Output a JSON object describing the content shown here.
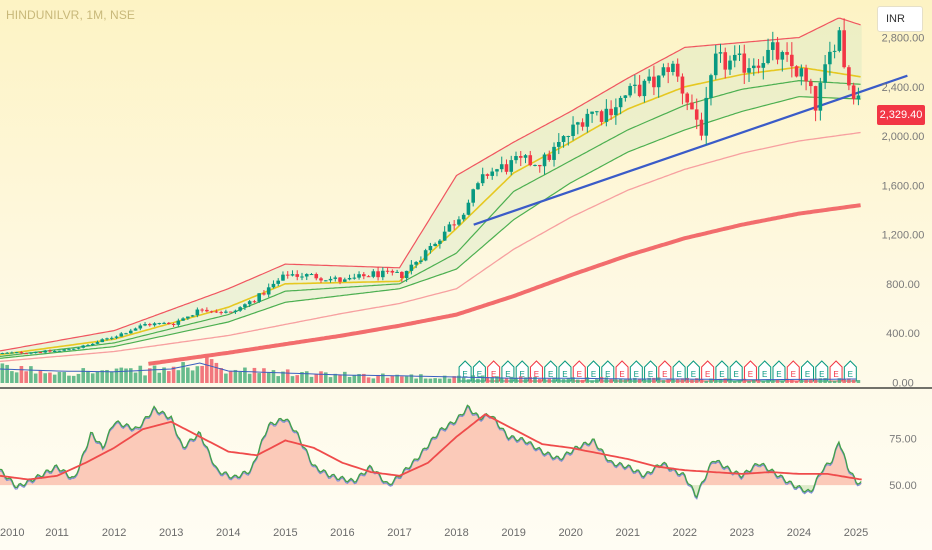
{
  "header": {
    "symbol": "HINDUNILVR, 1M, NSE",
    "currency": "INR"
  },
  "last_price": {
    "label": "2,329.40",
    "color": "#f23645"
  },
  "colors": {
    "up": "#089981",
    "down": "#f23645",
    "trendline": "#3a5bc8",
    "bb_red": "#f0555f",
    "ema_yellow": "#e6c821",
    "ema_green": "#4caf50",
    "ma_pink": "#f7a0a0",
    "ma_red_thick": "#f26d6d",
    "rsi_blue": "#7e8ed8",
    "rsi_green": "#43a047",
    "rsi_ma": "#ef4b4b",
    "rsi_fill": "#f9b9a7"
  },
  "chart_data": {
    "type": "candlestick",
    "x_axis": {
      "labels": [
        "2010",
        "2011",
        "2012",
        "2013",
        "2014",
        "2015",
        "2016",
        "2017",
        "2018",
        "2019",
        "2020",
        "2021",
        "2022",
        "2023",
        "2024",
        "2025"
      ],
      "range": [
        2010.0,
        2025.35
      ]
    },
    "price_axis": {
      "scale": "linear",
      "ylim": [
        -30,
        3040
      ],
      "ticks": [
        "0.00",
        "400.00",
        "800.00",
        "1,200.00",
        "1,600.00",
        "2,000.00",
        "2,400.00",
        "2,800.00"
      ]
    },
    "rsi_axis": {
      "ylim": [
        42,
        100
      ],
      "ticks": [
        "50.00",
        "75.00"
      ]
    },
    "grid": false,
    "close_anchors": [
      [
        2010.0,
        235
      ],
      [
        2010.5,
        245
      ],
      [
        2011.0,
        255
      ],
      [
        2011.5,
        300
      ],
      [
        2012.0,
        380
      ],
      [
        2012.5,
        470
      ],
      [
        2013.0,
        480
      ],
      [
        2013.5,
        600
      ],
      [
        2014.0,
        560
      ],
      [
        2014.5,
        700
      ],
      [
        2015.0,
        880
      ],
      [
        2015.5,
        860
      ],
      [
        2016.0,
        820
      ],
      [
        2016.5,
        880
      ],
      [
        2017.0,
        870
      ],
      [
        2017.5,
        1100
      ],
      [
        2018.0,
        1350
      ],
      [
        2018.5,
        1700
      ],
      [
        2019.0,
        1780
      ],
      [
        2019.5,
        1800
      ],
      [
        2020.0,
        2050
      ],
      [
        2020.25,
        2200
      ],
      [
        2020.5,
        2180
      ],
      [
        2021.0,
        2350
      ],
      [
        2021.5,
        2450
      ],
      [
        2021.7,
        2600
      ],
      [
        2022.0,
        2300
      ],
      [
        2022.25,
        2050
      ],
      [
        2022.5,
        2600
      ],
      [
        2023.0,
        2580
      ],
      [
        2023.5,
        2680
      ],
      [
        2024.0,
        2500
      ],
      [
        2024.25,
        2250
      ],
      [
        2024.5,
        2650
      ],
      [
        2024.65,
        2900
      ],
      [
        2024.8,
        2450
      ],
      [
        2025.0,
        2329.4
      ]
    ],
    "overlays": [
      {
        "name": "upper band",
        "anchors": [
          [
            2010.0,
            255
          ],
          [
            2012.0,
            420
          ],
          [
            2014.0,
            760
          ],
          [
            2015.0,
            960
          ],
          [
            2017.0,
            930
          ],
          [
            2018.0,
            1680
          ],
          [
            2019.0,
            1950
          ],
          [
            2020.0,
            2200
          ],
          [
            2021.0,
            2470
          ],
          [
            2022.0,
            2720
          ],
          [
            2023.0,
            2760
          ],
          [
            2024.0,
            2800
          ],
          [
            2024.7,
            2960
          ],
          [
            2025.1,
            2900
          ]
        ]
      },
      {
        "name": "ema fast",
        "anchors": [
          [
            2010.0,
            225
          ],
          [
            2012.0,
            350
          ],
          [
            2014.0,
            610
          ],
          [
            2015.0,
            800
          ],
          [
            2017.0,
            820
          ],
          [
            2018.0,
            1250
          ],
          [
            2019.0,
            1700
          ],
          [
            2020.0,
            1950
          ],
          [
            2021.0,
            2220
          ],
          [
            2022.0,
            2400
          ],
          [
            2023.0,
            2500
          ],
          [
            2024.0,
            2560
          ],
          [
            2025.1,
            2480
          ]
        ]
      },
      {
        "name": "ema mid",
        "anchors": [
          [
            2010.0,
            210
          ],
          [
            2012.0,
            320
          ],
          [
            2014.0,
            550
          ],
          [
            2015.0,
            740
          ],
          [
            2017.0,
            800
          ],
          [
            2018.0,
            1050
          ],
          [
            2019.0,
            1550
          ],
          [
            2020.0,
            1800
          ],
          [
            2021.0,
            2050
          ],
          [
            2022.0,
            2250
          ],
          [
            2023.0,
            2380
          ],
          [
            2024.0,
            2450
          ],
          [
            2025.1,
            2420
          ]
        ]
      },
      {
        "name": "ema slow",
        "anchors": [
          [
            2010.0,
            195
          ],
          [
            2012.0,
            290
          ],
          [
            2014.0,
            490
          ],
          [
            2015.0,
            650
          ],
          [
            2017.0,
            760
          ],
          [
            2018.0,
            920
          ],
          [
            2019.0,
            1320
          ],
          [
            2020.0,
            1620
          ],
          [
            2021.0,
            1870
          ],
          [
            2022.0,
            2050
          ],
          [
            2023.0,
            2200
          ],
          [
            2024.0,
            2320
          ],
          [
            2025.1,
            2300
          ]
        ]
      },
      {
        "name": "ma 100",
        "anchors": [
          [
            2010.0,
            170
          ],
          [
            2012.0,
            250
          ],
          [
            2014.0,
            380
          ],
          [
            2016.0,
            560
          ],
          [
            2017.0,
            640
          ],
          [
            2018.0,
            760
          ],
          [
            2019.0,
            1080
          ],
          [
            2020.0,
            1340
          ],
          [
            2021.0,
            1560
          ],
          [
            2022.0,
            1730
          ],
          [
            2023.0,
            1860
          ],
          [
            2024.0,
            1960
          ],
          [
            2025.1,
            2030
          ]
        ]
      },
      {
        "name": "ma 200",
        "anchors": [
          [
            2012.6,
            150
          ],
          [
            2014.0,
            240
          ],
          [
            2015.0,
            310
          ],
          [
            2016.0,
            380
          ],
          [
            2017.0,
            460
          ],
          [
            2018.0,
            550
          ],
          [
            2019.0,
            700
          ],
          [
            2020.0,
            870
          ],
          [
            2021.0,
            1030
          ],
          [
            2022.0,
            1170
          ],
          [
            2023.0,
            1280
          ],
          [
            2024.0,
            1370
          ],
          [
            2025.1,
            1440
          ]
        ]
      },
      {
        "name": "trendline",
        "anchors": [
          [
            2018.3,
            1280
          ],
          [
            2025.9,
            2490
          ]
        ]
      }
    ],
    "volume_anchors": [
      [
        2010.0,
        0.35
      ],
      [
        2011.0,
        0.3
      ],
      [
        2012.0,
        0.28
      ],
      [
        2013.0,
        0.35
      ],
      [
        2013.5,
        0.5
      ],
      [
        2014.0,
        0.3
      ],
      [
        2015.0,
        0.25
      ],
      [
        2016.0,
        0.2
      ],
      [
        2017.0,
        0.18
      ],
      [
        2018.0,
        0.15
      ],
      [
        2019.0,
        0.12
      ],
      [
        2020.0,
        0.12
      ],
      [
        2021.0,
        0.1
      ],
      [
        2022.0,
        0.1
      ],
      [
        2023.0,
        0.08
      ],
      [
        2024.0,
        0.09
      ],
      [
        2025.0,
        0.1
      ]
    ],
    "rsi": {
      "anchors": [
        [
          2010.0,
          58
        ],
        [
          2010.3,
          49
        ],
        [
          2010.7,
          55
        ],
        [
          2011.0,
          60
        ],
        [
          2011.3,
          53
        ],
        [
          2011.6,
          78
        ],
        [
          2011.8,
          70
        ],
        [
          2012.0,
          84
        ],
        [
          2012.4,
          80
        ],
        [
          2012.7,
          91
        ],
        [
          2013.0,
          86
        ],
        [
          2013.2,
          70
        ],
        [
          2013.5,
          78
        ],
        [
          2013.8,
          58
        ],
        [
          2014.1,
          54
        ],
        [
          2014.4,
          58
        ],
        [
          2014.7,
          82
        ],
        [
          2015.0,
          86
        ],
        [
          2015.2,
          78
        ],
        [
          2015.5,
          60
        ],
        [
          2015.8,
          55
        ],
        [
          2016.2,
          52
        ],
        [
          2016.5,
          60
        ],
        [
          2016.8,
          50
        ],
        [
          2017.0,
          55
        ],
        [
          2017.3,
          64
        ],
        [
          2017.7,
          79
        ],
        [
          2018.0,
          85
        ],
        [
          2018.2,
          92
        ],
        [
          2018.4,
          86
        ],
        [
          2018.6,
          88
        ],
        [
          2018.9,
          76
        ],
        [
          2019.2,
          74
        ],
        [
          2019.5,
          68
        ],
        [
          2019.8,
          64
        ],
        [
          2020.1,
          70
        ],
        [
          2020.4,
          74
        ],
        [
          2020.7,
          62
        ],
        [
          2021.0,
          60
        ],
        [
          2021.3,
          55
        ],
        [
          2021.6,
          62
        ],
        [
          2021.8,
          58
        ],
        [
          2022.0,
          55
        ],
        [
          2022.2,
          44
        ],
        [
          2022.5,
          64
        ],
        [
          2022.8,
          58
        ],
        [
          2023.0,
          55
        ],
        [
          2023.3,
          62
        ],
        [
          2023.6,
          56
        ],
        [
          2023.9,
          50
        ],
        [
          2024.2,
          46
        ],
        [
          2024.4,
          58
        ],
        [
          2024.6,
          64
        ],
        [
          2024.7,
          74
        ],
        [
          2024.85,
          60
        ],
        [
          2025.0,
          52
        ],
        [
          2025.1,
          51
        ]
      ],
      "ma_anchors": [
        [
          2010.0,
          55
        ],
        [
          2010.5,
          53
        ],
        [
          2011.0,
          55
        ],
        [
          2011.5,
          62
        ],
        [
          2012.0,
          70
        ],
        [
          2012.5,
          80
        ],
        [
          2013.0,
          84
        ],
        [
          2013.5,
          76
        ],
        [
          2014.0,
          68
        ],
        [
          2014.5,
          66
        ],
        [
          2015.0,
          74
        ],
        [
          2015.5,
          70
        ],
        [
          2016.0,
          62
        ],
        [
          2016.5,
          57
        ],
        [
          2017.0,
          55
        ],
        [
          2017.5,
          62
        ],
        [
          2018.0,
          76
        ],
        [
          2018.5,
          88
        ],
        [
          2019.0,
          80
        ],
        [
          2019.5,
          72
        ],
        [
          2020.0,
          70
        ],
        [
          2020.5,
          67
        ],
        [
          2021.0,
          64
        ],
        [
          2021.5,
          60
        ],
        [
          2022.0,
          58
        ],
        [
          2022.5,
          57
        ],
        [
          2023.0,
          56
        ],
        [
          2023.5,
          57
        ],
        [
          2024.0,
          56
        ],
        [
          2024.5,
          56
        ],
        [
          2025.1,
          53
        ]
      ]
    }
  }
}
